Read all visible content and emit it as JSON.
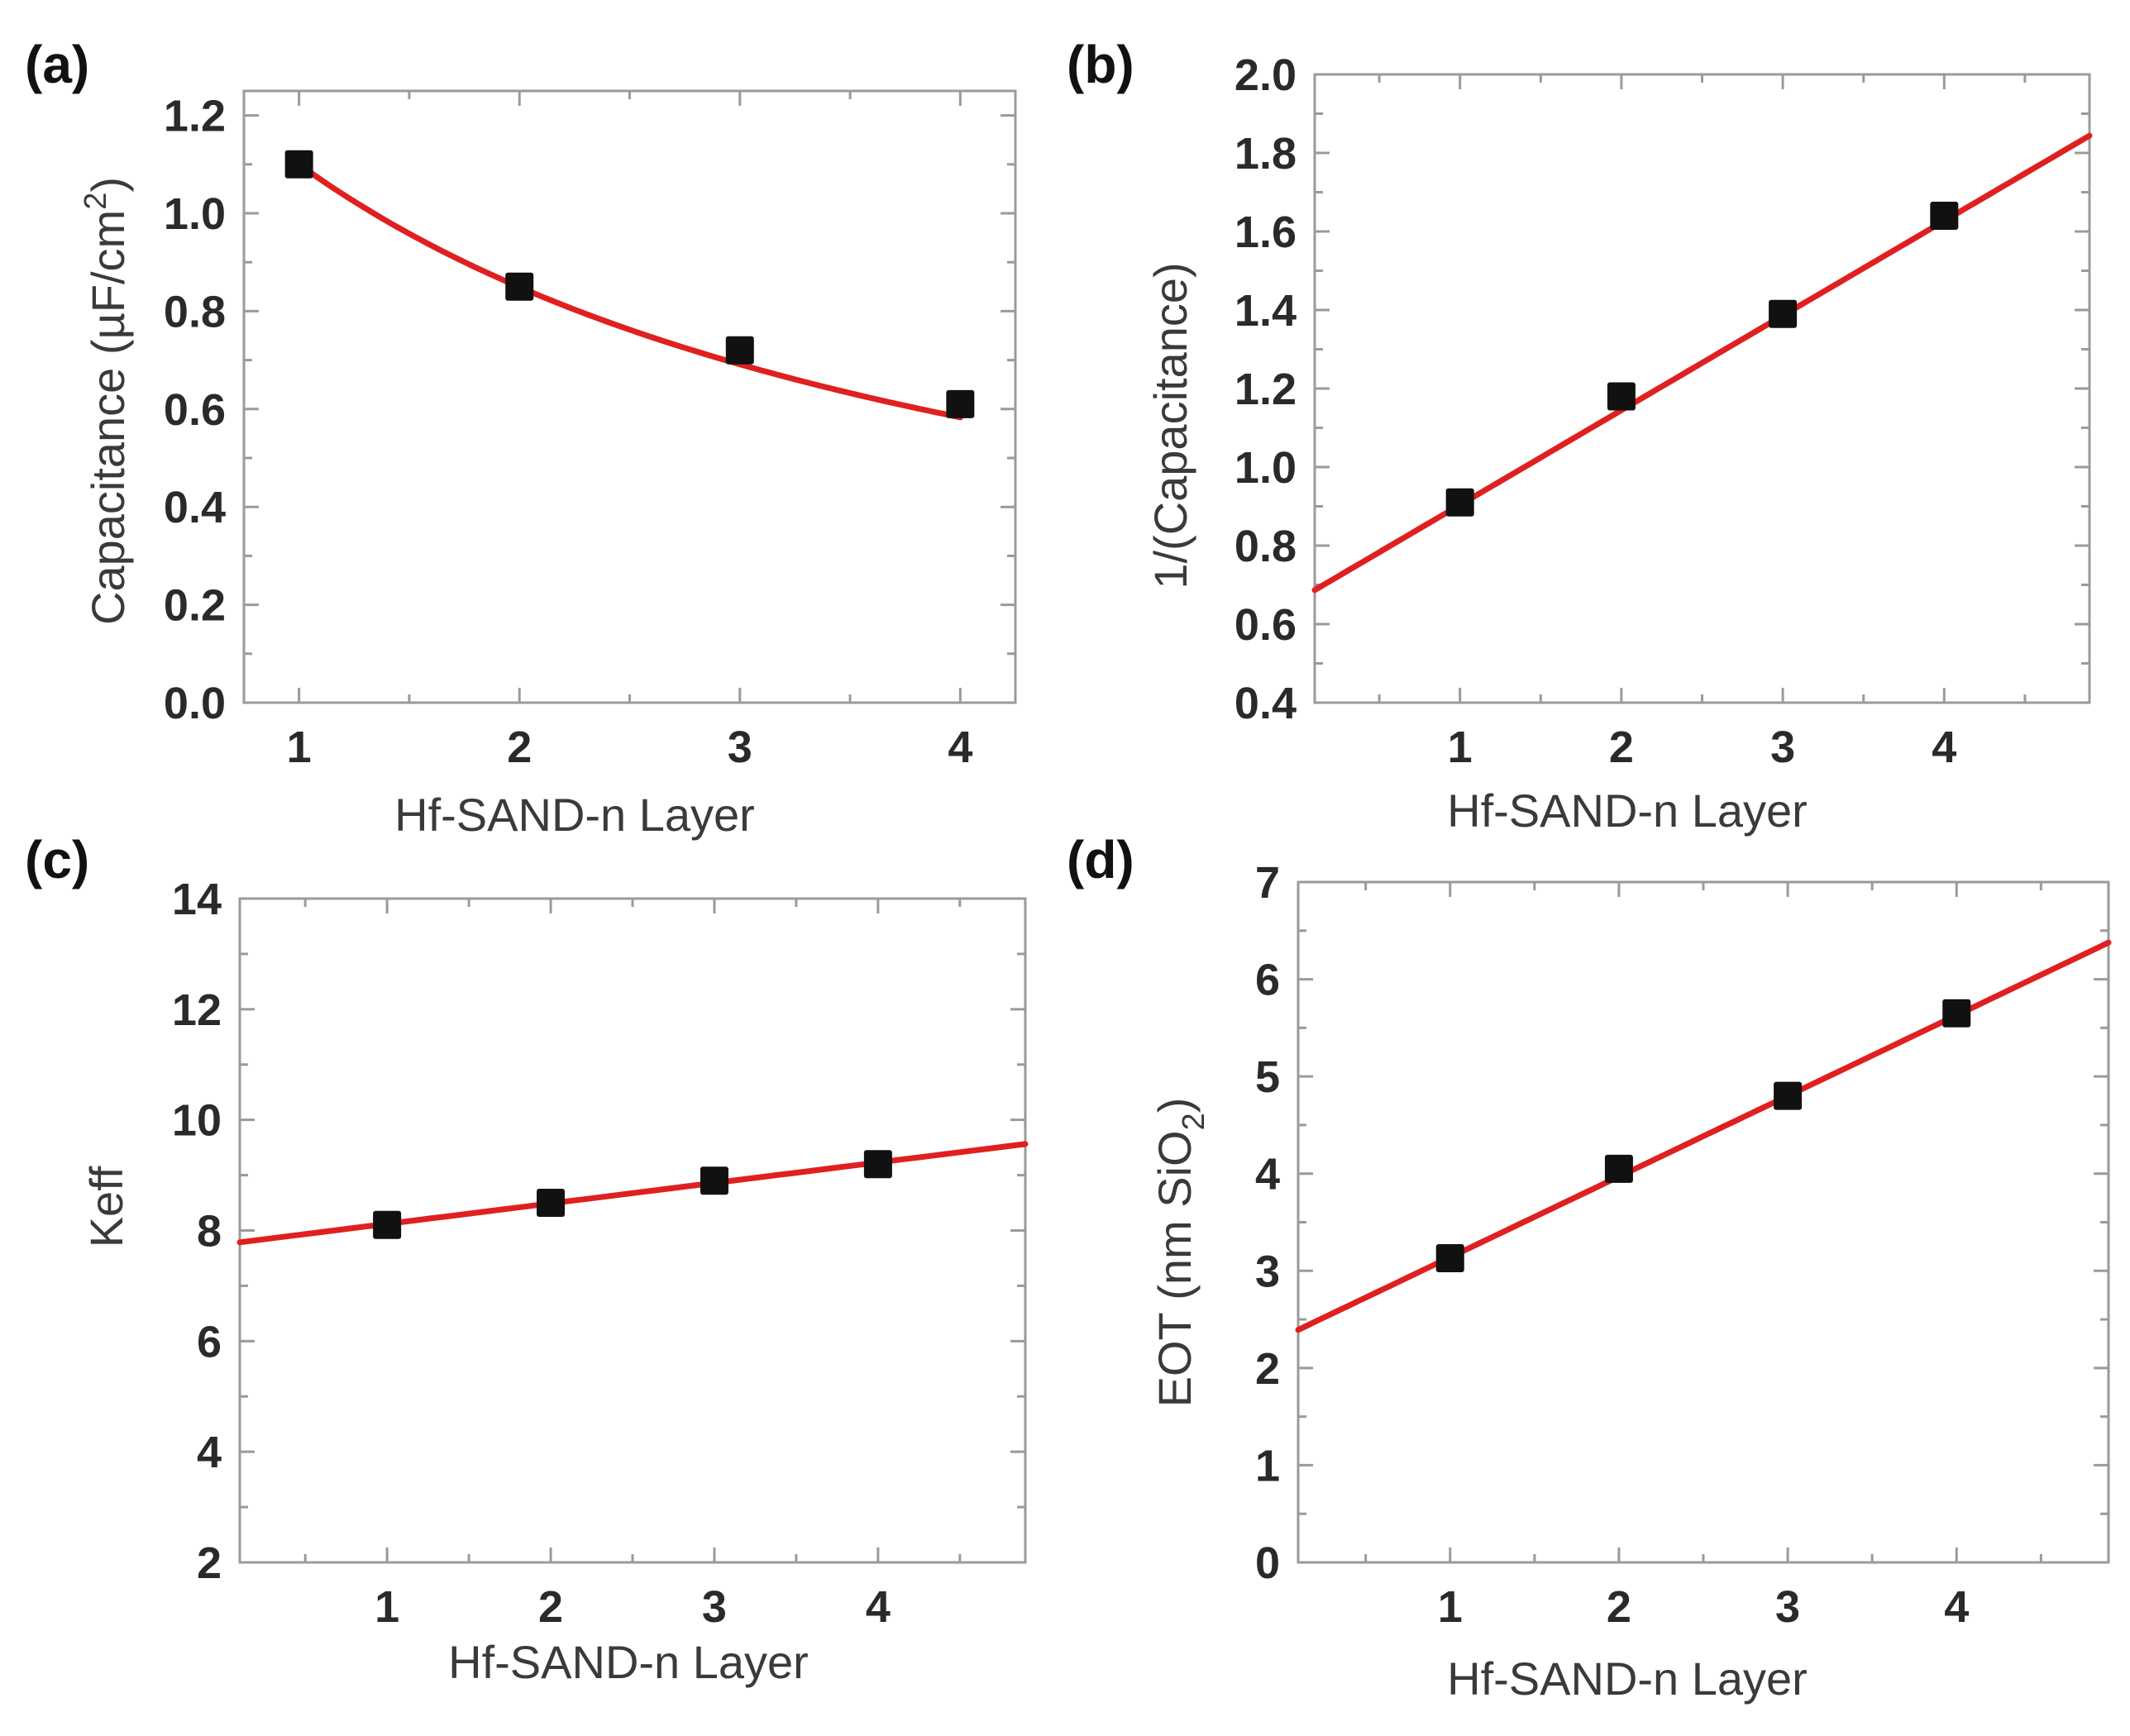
{
  "style": {
    "fit_color": "#e02020",
    "marker_color": "#111111",
    "frame_color": "#9a9a9a"
  },
  "chart_data": [
    {
      "id": "a",
      "panel_label": "(a)",
      "type": "scatter",
      "x": [
        1,
        2,
        3,
        4
      ],
      "y": [
        1.1,
        0.85,
        0.72,
        0.61
      ],
      "xlim": [
        0.75,
        4.25
      ],
      "ylim": [
        0,
        1.25
      ],
      "xticks": [
        1,
        2,
        3,
        4
      ],
      "xtick_labels": [
        "1",
        "2",
        "3",
        "4"
      ],
      "yticks": [
        0,
        0.2,
        0.4,
        0.6,
        0.8,
        1.0,
        1.2
      ],
      "ytick_labels": [
        "0.0",
        "0.2",
        "0.4",
        "0.6",
        "0.8",
        "1.0",
        "1.2"
      ],
      "xlabel": "Hf-SAND-n Layer",
      "ylabel": "Capacitance (µF/cm²)",
      "ylabel_main": "Capacitance (µF/cm",
      "ylabel_sup": "2",
      "ylabel_end": ")",
      "fit": {
        "type": "reciprocal-linear",
        "intercept": 0.6404,
        "slope": 0.2687,
        "x_range": [
          1,
          4
        ]
      }
    },
    {
      "id": "b",
      "panel_label": "(b)",
      "type": "scatter",
      "x": [
        1,
        2,
        3,
        4
      ],
      "y": [
        0.91,
        1.18,
        1.39,
        1.64
      ],
      "xlim": [
        0.1,
        4.9
      ],
      "ylim": [
        0.4,
        2.0
      ],
      "xticks": [
        1,
        2,
        3,
        4
      ],
      "xtick_labels": [
        "1",
        "2",
        "3",
        "4"
      ],
      "yticks": [
        0.4,
        0.6,
        0.8,
        1.0,
        1.2,
        1.4,
        1.6,
        1.8,
        2.0
      ],
      "ytick_labels": [
        "0.4",
        "0.6",
        "0.8",
        "1.0",
        "1.2",
        "1.4",
        "1.6",
        "1.8",
        "2.0"
      ],
      "xlabel": "Hf-SAND-n Layer",
      "ylabel": "1/(Capacitance)",
      "fit": {
        "type": "linear",
        "intercept": 0.6626,
        "slope": 0.2411,
        "x_range": [
          0.1,
          4.9
        ]
      }
    },
    {
      "id": "c",
      "panel_label": "(c)",
      "type": "scatter",
      "x": [
        1,
        2,
        3,
        4
      ],
      "y": [
        8.1,
        8.5,
        8.9,
        9.2
      ],
      "xlim": [
        0.1,
        4.9
      ],
      "ylim": [
        2,
        14
      ],
      "xticks": [
        1,
        2,
        3,
        4
      ],
      "xtick_labels": [
        "1",
        "2",
        "3",
        "4"
      ],
      "yticks": [
        2,
        4,
        6,
        8,
        10,
        12,
        14
      ],
      "ytick_labels": [
        "2",
        "4",
        "6",
        "8",
        "10",
        "12",
        "14"
      ],
      "xlabel": "Hf-SAND-n Layer",
      "ylabel": "Keff",
      "fit": {
        "type": "linear",
        "intercept": 7.75,
        "slope": 0.37,
        "x_range": [
          0.1,
          4.9
        ]
      }
    },
    {
      "id": "d",
      "panel_label": "(d)",
      "type": "scatter",
      "x": [
        1,
        2,
        3,
        4
      ],
      "y": [
        3.13,
        4.05,
        4.8,
        5.65
      ],
      "xlim": [
        0.1,
        4.9
      ],
      "ylim": [
        0,
        7
      ],
      "xticks": [
        1,
        2,
        3,
        4
      ],
      "xtick_labels": [
        "1",
        "2",
        "3",
        "4"
      ],
      "yticks": [
        0,
        1,
        2,
        3,
        4,
        5,
        6,
        7
      ],
      "ytick_labels": [
        "0",
        "1",
        "2",
        "3",
        "4",
        "5",
        "6",
        "7"
      ],
      "xlabel": "Hf-SAND-n Layer",
      "ylabel": "EOT (nm SiO₂)",
      "ylabel_main": "EOT (nm SiO",
      "ylabel_sub": "2",
      "ylabel_end": ")",
      "fit": {
        "type": "linear",
        "intercept": 2.31,
        "slope": 0.83,
        "x_range": [
          0.1,
          4.9
        ]
      }
    }
  ]
}
